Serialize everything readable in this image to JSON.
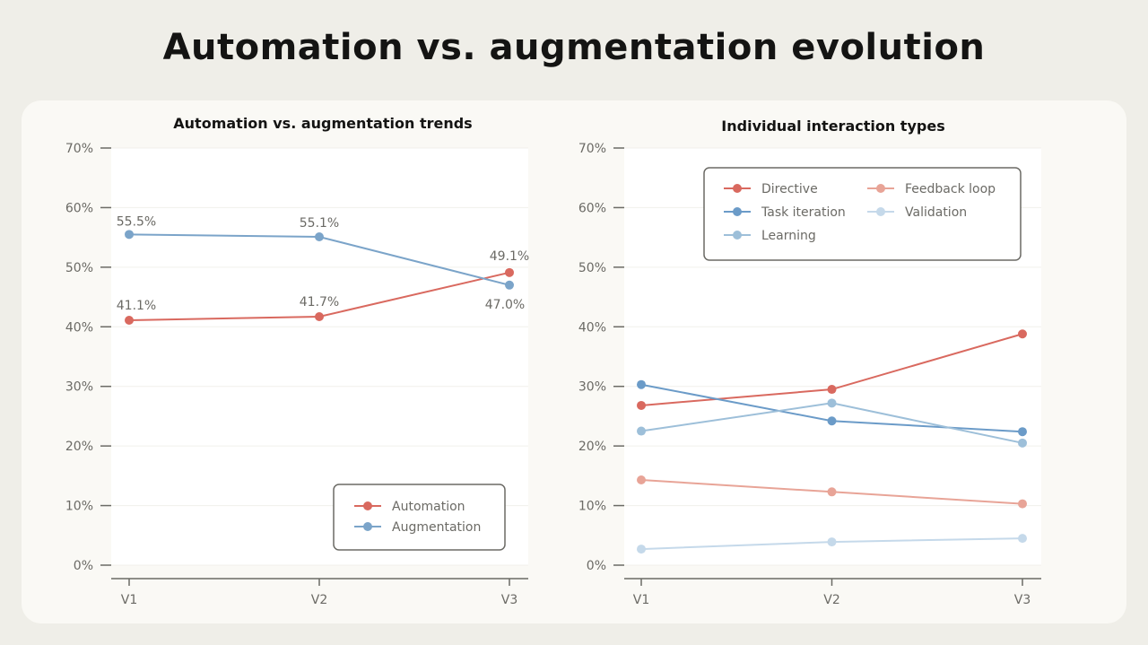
{
  "title": "Automation vs. augmentation evolution",
  "chart_data": [
    {
      "type": "line",
      "title": "Automation vs. augmentation trends",
      "categories": [
        "V1",
        "V2",
        "V3"
      ],
      "ylim": [
        0,
        70
      ],
      "yticks": [
        0,
        10,
        20,
        30,
        40,
        50,
        60,
        70
      ],
      "ytick_format": "%",
      "grid": true,
      "legend_position": "bottom-right",
      "series": [
        {
          "name": "Automation",
          "color": "#d9695f",
          "values": [
            41.1,
            41.7,
            49.1
          ],
          "labels": [
            "41.1%",
            "41.7%",
            "49.1%"
          ]
        },
        {
          "name": "Augmentation",
          "color": "#7ba4c9",
          "values": [
            55.5,
            55.1,
            47.0
          ],
          "labels": [
            "55.5%",
            "55.1%",
            "47.0%"
          ]
        }
      ]
    },
    {
      "type": "line",
      "title": "Individual interaction types",
      "categories": [
        "V1",
        "V2",
        "V3"
      ],
      "ylim": [
        0,
        70
      ],
      "yticks": [
        0,
        10,
        20,
        30,
        40,
        50,
        60,
        70
      ],
      "ytick_format": "%",
      "grid": true,
      "legend_position": "top",
      "series": [
        {
          "name": "Directive",
          "color": "#d9695f",
          "values": [
            26.8,
            29.5,
            38.8
          ]
        },
        {
          "name": "Feedback loop",
          "color": "#e8a497",
          "values": [
            14.3,
            12.3,
            10.3
          ]
        },
        {
          "name": "Task iteration",
          "color": "#6b9bc8",
          "values": [
            30.3,
            24.2,
            22.4
          ]
        },
        {
          "name": "Validation",
          "color": "#c5d9ea",
          "values": [
            2.7,
            3.9,
            4.5
          ]
        },
        {
          "name": "Learning",
          "color": "#9dbfd9",
          "values": [
            22.5,
            27.2,
            20.5
          ]
        }
      ]
    }
  ]
}
